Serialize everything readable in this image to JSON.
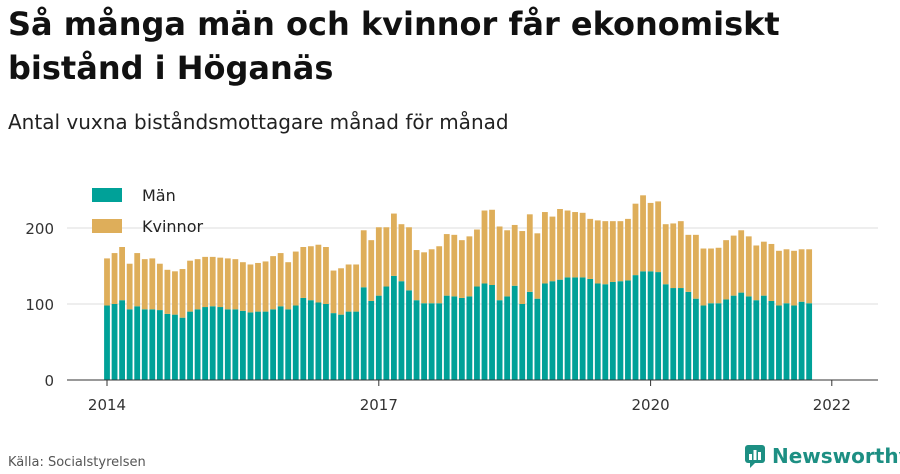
{
  "title": "Så många män och kvinnor får ekonomiskt bistånd i Höganäs",
  "subtitle": "Antal vuxna biståndsmottagare månad för månad",
  "source": "Källa: Socialstyrelsen",
  "brand": "Newsworthy",
  "colors": {
    "men": "#00a198",
    "women": "#deae5a",
    "grid": "#dedede",
    "axis": "#333333"
  },
  "chart_data": {
    "type": "bar",
    "stacked": true,
    "ylim": [
      0,
      250
    ],
    "yticks": [
      0,
      100,
      200
    ],
    "xticks": [
      "2014",
      "2017",
      "2020",
      "2022"
    ],
    "legend_position": "top-left",
    "series": [
      {
        "name": "Män",
        "values": [
          98,
          100,
          105,
          93,
          97,
          93,
          93,
          92,
          87,
          86,
          82,
          90,
          93,
          96,
          97,
          96,
          93,
          93,
          91,
          89,
          90,
          90,
          93,
          97,
          93,
          98,
          108,
          105,
          102,
          100,
          88,
          86,
          90,
          90,
          122,
          104,
          111,
          123,
          137,
          130,
          118,
          105,
          101,
          101,
          101,
          111,
          110,
          108,
          110,
          123,
          127,
          125,
          105,
          110,
          124,
          100,
          116,
          107,
          127,
          130,
          132,
          135,
          135,
          135,
          133,
          127,
          126,
          129,
          130,
          131,
          138,
          143,
          143,
          142,
          126,
          121,
          121,
          116,
          107,
          98,
          101,
          101,
          106,
          111,
          115,
          110,
          105,
          111,
          104,
          98,
          101,
          98,
          103,
          101
        ]
      },
      {
        "name": "Kvinnor",
        "values": [
          62,
          67,
          70,
          60,
          70,
          66,
          67,
          61,
          58,
          57,
          64,
          67,
          66,
          66,
          65,
          65,
          67,
          66,
          64,
          63,
          64,
          66,
          70,
          70,
          62,
          71,
          67,
          71,
          76,
          75,
          56,
          61,
          62,
          62,
          75,
          80,
          90,
          78,
          82,
          75,
          83,
          66,
          67,
          71,
          75,
          81,
          81,
          76,
          79,
          75,
          96,
          99,
          97,
          87,
          80,
          96,
          102,
          86,
          94,
          85,
          93,
          88,
          86,
          85,
          79,
          83,
          83,
          80,
          79,
          81,
          94,
          100,
          90,
          93,
          79,
          85,
          88,
          75,
          84,
          75,
          72,
          73,
          78,
          79,
          82,
          79,
          72,
          71,
          75,
          72,
          71,
          72,
          69,
          71
        ]
      }
    ]
  }
}
